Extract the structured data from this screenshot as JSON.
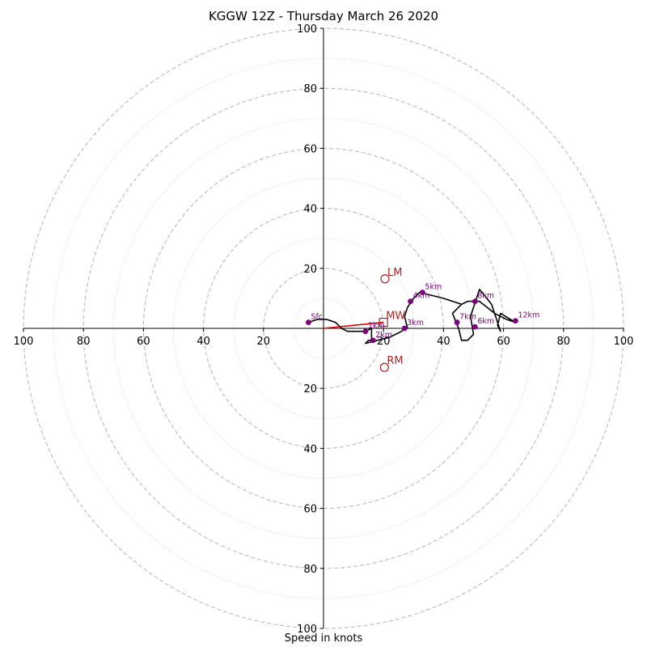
{
  "chart_data": {
    "type": "hodograph",
    "title": "KGGW 12Z - Thursday March 26 2020",
    "xlabel": "Speed in knots",
    "range": [
      -100,
      100
    ],
    "rings_major": [
      20,
      40,
      60,
      80,
      100
    ],
    "rings_minor": [
      10,
      30,
      50,
      70,
      90
    ],
    "tick_labels": [
      "100",
      "80",
      "60",
      "40",
      "20",
      "20",
      "40",
      "60",
      "80",
      "100"
    ],
    "tick_values": [
      -100,
      -80,
      -60,
      -40,
      -20,
      20,
      40,
      60,
      80,
      100
    ],
    "colors": {
      "ring": "#bbbbbb",
      "trace": "#000000",
      "height_marker": "#800080",
      "storm_motion": "#b22222",
      "mean_wind_vector": "#dd0000"
    },
    "trace": [
      [
        -5,
        2
      ],
      [
        -2,
        3
      ],
      [
        1,
        3
      ],
      [
        4,
        2
      ],
      [
        6,
        0
      ],
      [
        8,
        -1
      ],
      [
        10,
        -1
      ],
      [
        12,
        -1
      ],
      [
        14,
        -1
      ],
      [
        16,
        0
      ],
      [
        16,
        -4
      ],
      [
        15,
        -4
      ],
      [
        14,
        -5
      ],
      [
        18,
        -4
      ],
      [
        22,
        -3
      ],
      [
        26,
        -1
      ],
      [
        27,
        0
      ],
      [
        28,
        0
      ],
      [
        27,
        4
      ],
      [
        28,
        7
      ],
      [
        30,
        10
      ],
      [
        32,
        12
      ],
      [
        40,
        10
      ],
      [
        46,
        8
      ],
      [
        48,
        9
      ],
      [
        52,
        9
      ],
      [
        57,
        5
      ],
      [
        59,
        4
      ],
      [
        61,
        3
      ],
      [
        64,
        2
      ],
      [
        59,
        5
      ],
      [
        58,
        1
      ],
      [
        59,
        -1
      ],
      [
        56,
        8
      ],
      [
        52,
        13
      ],
      [
        49,
        4
      ],
      [
        50,
        -2
      ],
      [
        48,
        -4
      ],
      [
        46,
        -4
      ],
      [
        45,
        0
      ],
      [
        43,
        5
      ],
      [
        46,
        8
      ]
    ],
    "height_markers": [
      {
        "label": "Sfc",
        "x": -5,
        "y": 2
      },
      {
        "label": "1km",
        "x": 14,
        "y": -1
      },
      {
        "label": "2km",
        "x": 16.5,
        "y": -4
      },
      {
        "label": "3km",
        "x": 27,
        "y": 0
      },
      {
        "label": "4km",
        "x": 29,
        "y": 9
      },
      {
        "label": "5km",
        "x": 33,
        "y": 12
      },
      {
        "label": "6km",
        "x": 50.5,
        "y": 0.5
      },
      {
        "label": "7km",
        "x": 44.5,
        "y": 2
      },
      {
        "label": "8km",
        "x": 50.5,
        "y": 9
      },
      {
        "label": "12km",
        "x": 64,
        "y": 2.5
      }
    ],
    "storm_motion": [
      {
        "label": "LM",
        "x": 20.5,
        "y": 16.5
      },
      {
        "label": "MW",
        "x": 20,
        "y": 2
      },
      {
        "label": "RM",
        "x": 20.3,
        "y": -13
      }
    ],
    "mean_wind_vector": {
      "from": [
        0,
        0
      ],
      "to": [
        20,
        2
      ]
    }
  }
}
